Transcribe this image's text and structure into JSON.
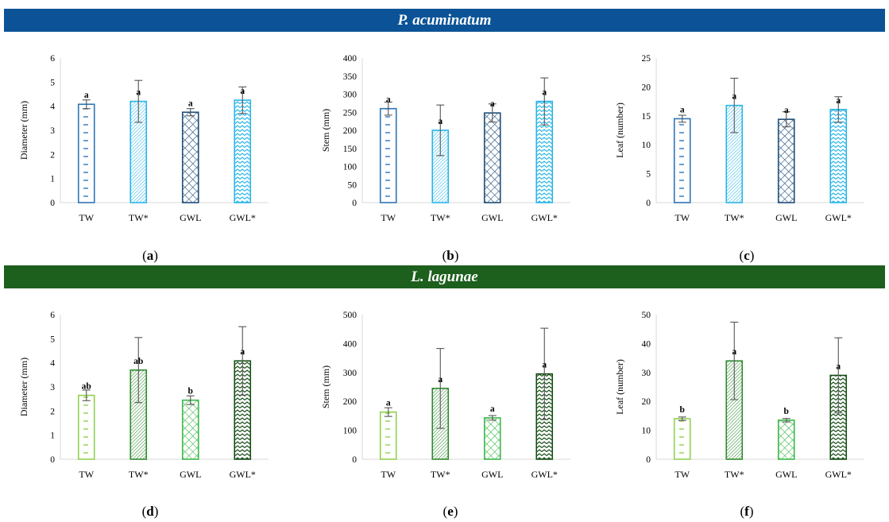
{
  "species": [
    {
      "name": "P. acuminatum",
      "color": "#0b5396"
    },
    {
      "name": "L. lagunae",
      "color": "#1d5f1d"
    }
  ],
  "panel_labels": [
    "a",
    "b",
    "c",
    "d",
    "e",
    "f"
  ],
  "palette": {
    "blue": [
      "#2e75b6",
      "#29b5e8",
      "#1f4e79",
      "#29b5e8"
    ],
    "green": [
      "#92d050",
      "#2f8a2f",
      "#3cb84a",
      "#154d15"
    ]
  },
  "chart_data": [
    {
      "type": "bar",
      "panel": "a",
      "categories": [
        "TW",
        "TW*",
        "GWL",
        "GWL*"
      ],
      "values": [
        4.08,
        4.2,
        3.75,
        4.25
      ],
      "errors": [
        0.18,
        0.87,
        0.15,
        0.55
      ],
      "letters": [
        "a",
        "a",
        "a",
        "a"
      ],
      "ylabel": "Diameter (mm)",
      "ylim": [
        0,
        6
      ],
      "ticks": [
        0,
        1,
        2,
        3,
        4,
        5,
        6
      ],
      "palette": "blue"
    },
    {
      "type": "bar",
      "panel": "b",
      "categories": [
        "TW",
        "TW*",
        "GWL",
        "GWL*"
      ],
      "values": [
        260,
        200,
        248,
        280
      ],
      "errors": [
        18,
        70,
        25,
        65
      ],
      "letters": [
        "a",
        "a",
        "a",
        "a"
      ],
      "ylabel": "Stem (mm)",
      "ylim": [
        0,
        400
      ],
      "ticks": [
        0,
        50,
        100,
        150,
        200,
        250,
        300,
        350,
        400
      ],
      "palette": "blue"
    },
    {
      "type": "bar",
      "panel": "c",
      "categories": [
        "TW",
        "TW*",
        "GWL",
        "GWL*"
      ],
      "values": [
        14.5,
        16.8,
        14.4,
        16.1
      ],
      "errors": [
        0.6,
        4.7,
        1.3,
        2.2
      ],
      "letters": [
        "a",
        "a",
        "a",
        "a"
      ],
      "ylabel": "Leaf (number)",
      "ylim": [
        0,
        25
      ],
      "ticks": [
        0,
        5,
        10,
        15,
        20,
        25
      ],
      "palette": "blue"
    },
    {
      "type": "bar",
      "panel": "d",
      "categories": [
        "TW",
        "TW*",
        "GWL",
        "GWL*"
      ],
      "values": [
        2.65,
        3.7,
        2.45,
        4.08
      ],
      "errors": [
        0.22,
        1.35,
        0.18,
        1.42
      ],
      "letters": [
        "ab",
        "ab",
        "b",
        "a"
      ],
      "ylabel": "Diameter (mm)",
      "ylim": [
        0,
        6
      ],
      "ticks": [
        0,
        1,
        2,
        3,
        4,
        5,
        6
      ],
      "palette": "green"
    },
    {
      "type": "bar",
      "panel": "e",
      "categories": [
        "TW",
        "TW*",
        "GWL",
        "GWL*"
      ],
      "values": [
        163,
        245,
        143,
        295
      ],
      "errors": [
        15,
        138,
        8,
        158
      ],
      "letters": [
        "a",
        "a",
        "a",
        "a"
      ],
      "ylabel": "Stem (mm)",
      "ylim": [
        0,
        500
      ],
      "ticks": [
        0,
        100,
        200,
        300,
        400,
        500
      ],
      "palette": "green"
    },
    {
      "type": "bar",
      "panel": "f",
      "categories": [
        "TW",
        "TW*",
        "GWL",
        "GWL*"
      ],
      "values": [
        14,
        34,
        13.5,
        29
      ],
      "errors": [
        0.6,
        13.4,
        0.6,
        13
      ],
      "letters": [
        "b",
        "a",
        "b",
        "a"
      ],
      "ylabel": "Leaf (number)",
      "ylim": [
        0,
        50
      ],
      "ticks": [
        0,
        10,
        20,
        30,
        40,
        50
      ],
      "palette": "green"
    }
  ]
}
